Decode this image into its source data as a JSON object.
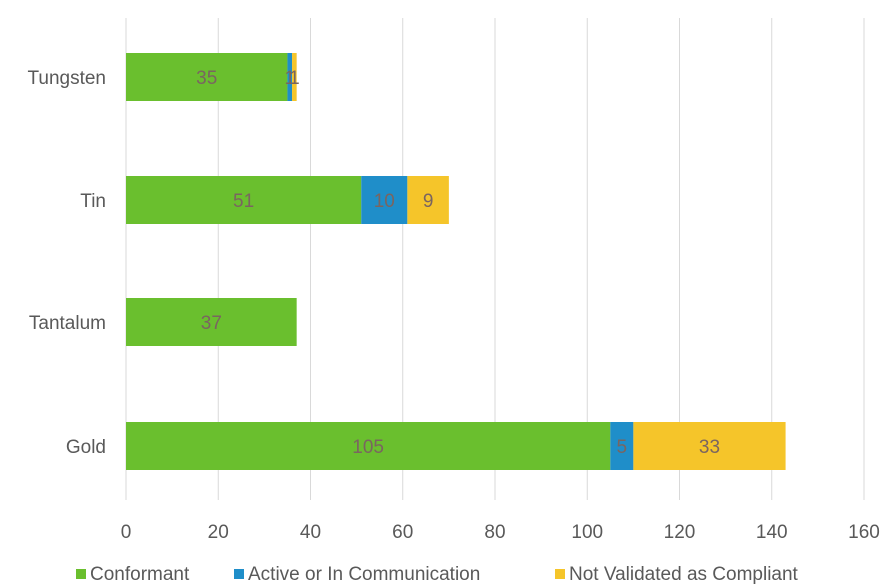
{
  "chart_data": {
    "type": "bar",
    "orientation": "horizontal",
    "stacked": true,
    "categories": [
      "Tungsten",
      "Tin",
      "Tantalum",
      "Gold"
    ],
    "series": [
      {
        "name": "Conformant",
        "color": "#6abf2e",
        "values": [
          35,
          51,
          37,
          105
        ],
        "labels": [
          "35",
          "51",
          "37",
          "105"
        ]
      },
      {
        "name": "Active or In Communication",
        "color": "#1f8ec9",
        "values": [
          1,
          10,
          0,
          5
        ],
        "labels": [
          "1",
          "10",
          "",
          "5"
        ]
      },
      {
        "name": "Not Validated as Compliant",
        "color": "#f5c52a",
        "values": [
          1,
          9,
          0,
          33
        ],
        "labels": [
          "1",
          "9",
          "",
          "33"
        ]
      }
    ],
    "xlim": [
      0,
      160
    ],
    "xticks": [
      "0",
      "20",
      "40",
      "60",
      "80",
      "100",
      "120",
      "140",
      "160"
    ],
    "grid": true,
    "legend_position": "bottom"
  }
}
